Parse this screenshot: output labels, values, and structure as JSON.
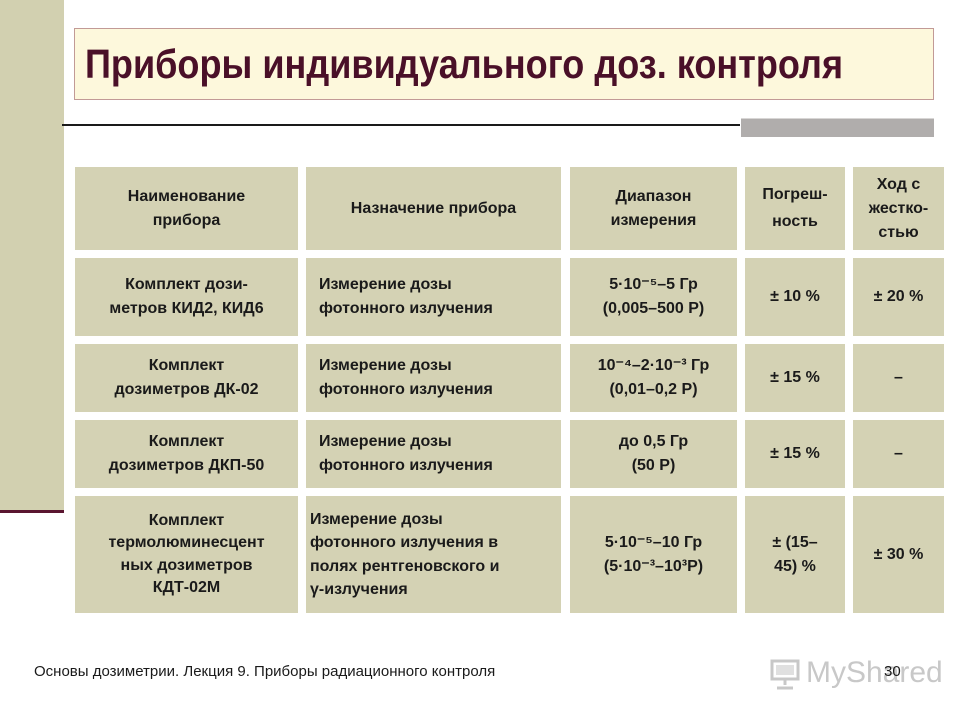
{
  "slide": {
    "title": "Приборы индивидуального доз. контроля"
  },
  "table": {
    "headers": [
      "Наименование\nприбора",
      "Назначение прибора",
      "Диапазон\nизмерения",
      "Погреш-\nность",
      "Ход с\nжестко-\nстью"
    ],
    "rows": [
      [
        "Комплект дози-\nметров КИД2, КИД6",
        "Измерение дозы\nфотонного излучения",
        "5·10⁻⁵–5 Гр\n(0,005–500 Р)",
        "± 10 %",
        "± 20 %"
      ],
      [
        "Комплект\nдозиметров ДК-02",
        "Измерение дозы\nфотонного излучения",
        "10⁻⁴–2·10⁻³ Гр\n(0,01–0,2 Р)",
        "± 15 %",
        "–"
      ],
      [
        "Комплект\nдозиметров ДКП-50",
        "Измерение дозы\nфотонного излучения",
        "до 0,5 Гр\n(50 Р)",
        "± 15 %",
        "–"
      ],
      [
        "Комплект\nтермолюминесцент\nных дозиметров\nКДТ-02М",
        "Измерение дозы\nфотонного излучения в\nполях рентгеновского и\nγ-излучения",
        "5·10⁻⁵–10 Гр\n(5·10⁻³–10³Р)",
        "± (15–\n45) %",
        "± 30 %"
      ]
    ]
  },
  "footer": {
    "text": "Основы дозиметрии. Лекция 9. Приборы радиационного контроля",
    "page": "30",
    "watermark": "MyShared",
    "watermark_icon": "presentation-board-icon"
  },
  "colors": {
    "title": "#4a1028",
    "cell_bg": "#d4d2b4",
    "band": "#d2d0b0"
  }
}
